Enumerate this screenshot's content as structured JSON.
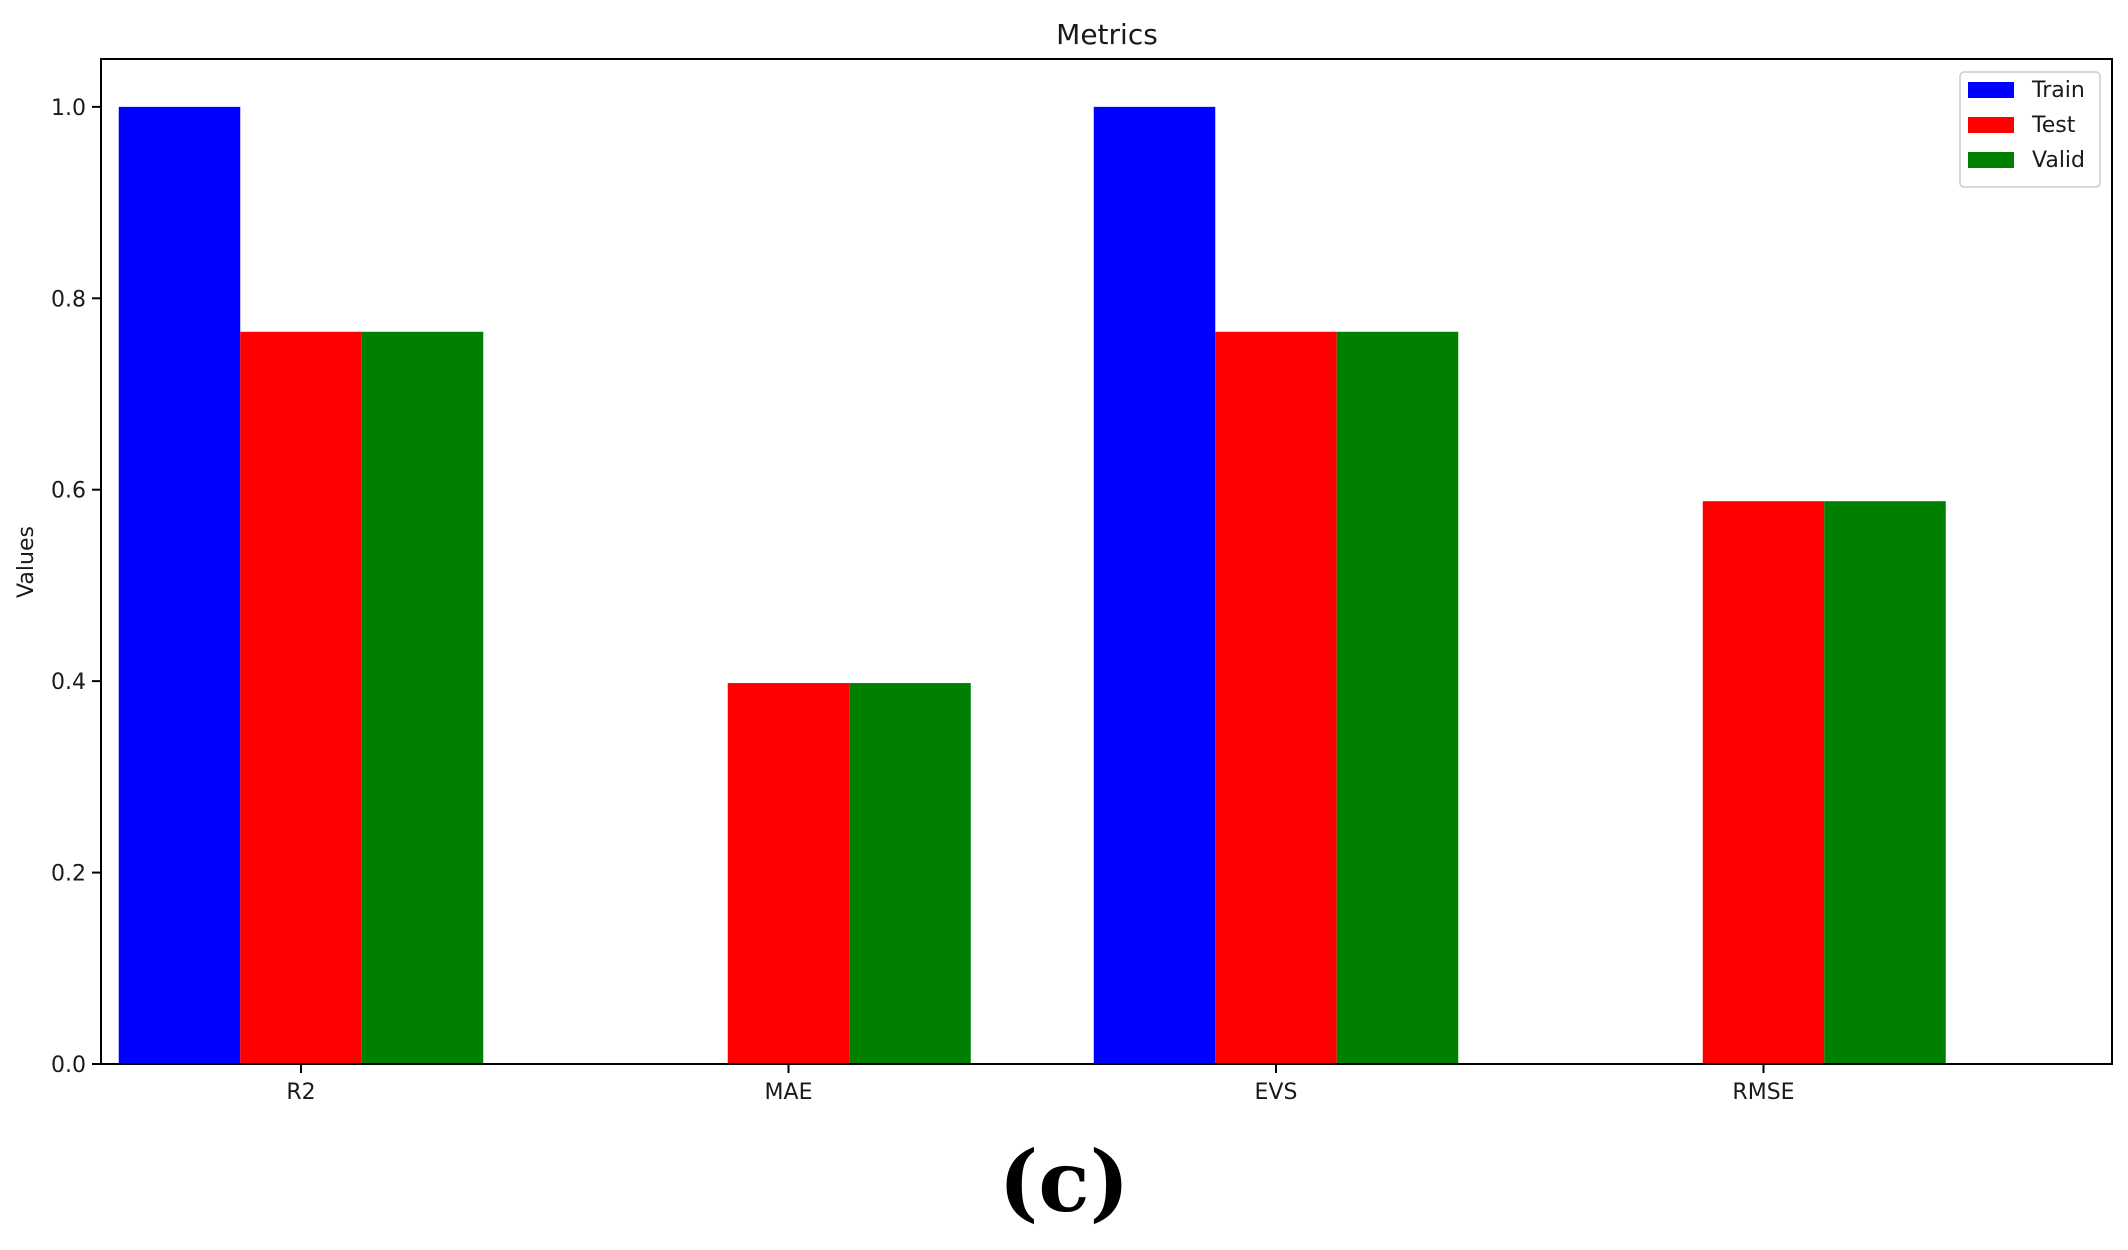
{
  "caption": "(c)",
  "chart_data": {
    "type": "bar",
    "title": "Metrics",
    "xlabel": "",
    "ylabel": "Values",
    "categories": [
      "R2",
      "MAE",
      "EVS",
      "RMSE"
    ],
    "series": [
      {
        "name": "Train",
        "color": "#0000ff",
        "values": [
          1.0,
          0.0,
          1.0,
          0.0
        ]
      },
      {
        "name": "Test",
        "color": "#ff0000",
        "values": [
          0.765,
          0.398,
          0.765,
          0.588
        ]
      },
      {
        "name": "Valid",
        "color": "#008000",
        "values": [
          0.765,
          0.398,
          0.765,
          0.588
        ]
      }
    ],
    "ylim": [
      0,
      1.05
    ],
    "yticks": [
      "0.0",
      "0.2",
      "0.4",
      "0.6",
      "0.8",
      "1.0"
    ],
    "grid": false,
    "legend_position": "top-right"
  }
}
